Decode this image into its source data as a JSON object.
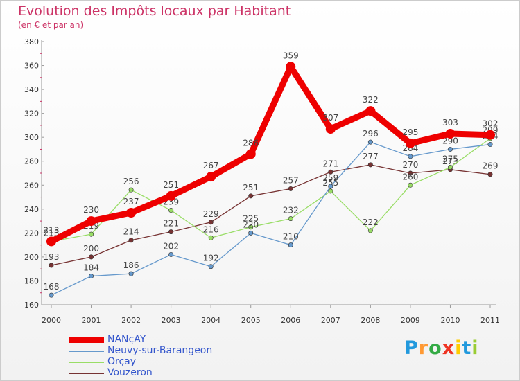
{
  "chart_data": {
    "type": "line",
    "title": "Evolution des Impôts locaux par Habitant",
    "subtitle": "(en € et par an)",
    "xlabel": "",
    "ylabel": "",
    "ylim": [
      160,
      380
    ],
    "yticks": [
      160,
      180,
      200,
      220,
      240,
      260,
      280,
      300,
      320,
      340,
      360,
      380
    ],
    "x": [
      "2000",
      "2001",
      "2002",
      "2003",
      "2004",
      "2005",
      "2006",
      "2007",
      "2008",
      "2009",
      "2010",
      "2011"
    ],
    "series": [
      {
        "name": "NANçAY",
        "color": "#ee0000",
        "values": [
          213,
          230,
          237,
          251,
          267,
          286,
          359,
          307,
          322,
          295,
          303,
          302
        ]
      },
      {
        "name": "Neuvy-sur-Barangeon",
        "color": "#6699cc",
        "values": [
          168,
          184,
          186,
          202,
          192,
          220,
          210,
          259,
          296,
          284,
          290,
          294
        ]
      },
      {
        "name": "Orçay",
        "color": "#99dd66",
        "values": [
          213,
          219,
          256,
          239,
          216,
          225,
          232,
          255,
          222,
          260,
          275,
          299
        ]
      },
      {
        "name": "Vouzeron",
        "color": "#773333",
        "values": [
          193,
          200,
          214,
          221,
          229,
          251,
          257,
          271,
          277,
          270,
          273,
          269
        ]
      }
    ],
    "grid": false,
    "legend": "bottom-left"
  },
  "brand": {
    "letters": [
      "P",
      "r",
      "o",
      "x",
      "i",
      "t",
      "i"
    ],
    "colors": [
      "#2299dd",
      "#ff9933",
      "#33aa44",
      "#ee3322",
      "#ffcc00",
      "#2299dd",
      "#99cc33"
    ]
  }
}
